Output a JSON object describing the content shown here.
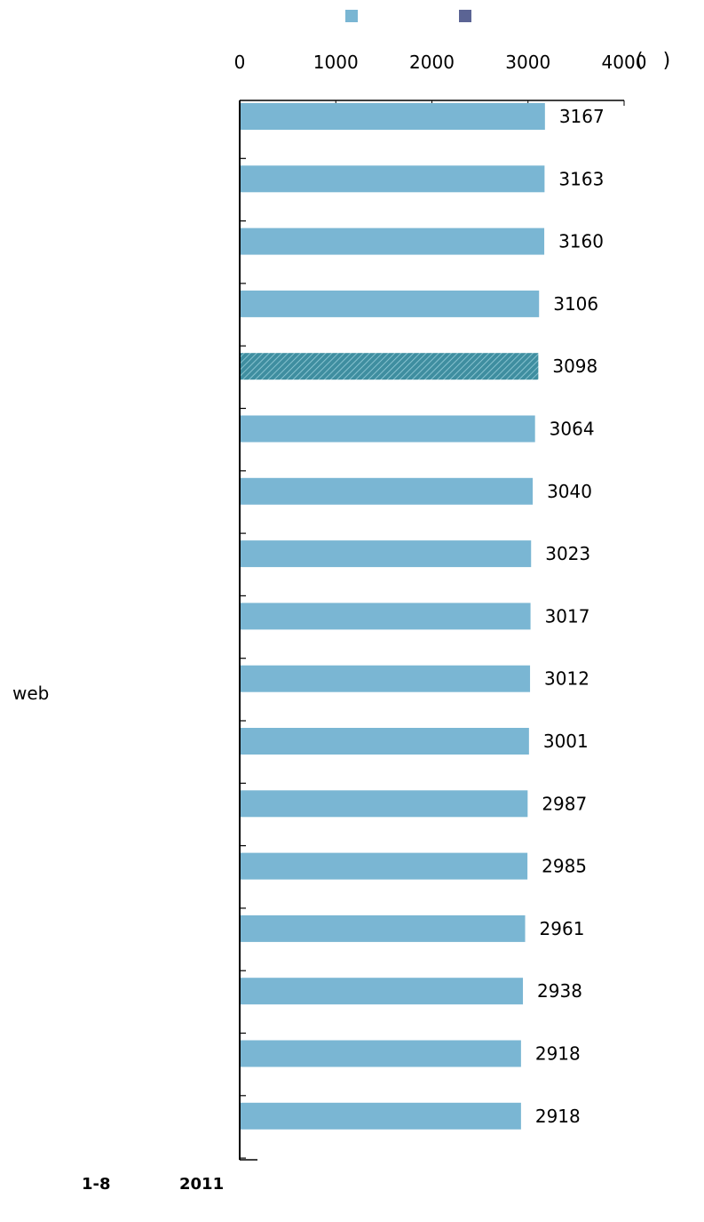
{
  "chart_data": {
    "type": "bar",
    "orientation": "horizontal",
    "values": [
      3167,
      3163,
      3160,
      3106,
      3098,
      3064,
      3040,
      3023,
      3017,
      3012,
      3001,
      2987,
      2985,
      2961,
      2938,
      2918,
      2918
    ],
    "highlight_index": 4,
    "xlim": [
      0,
      4000
    ],
    "x_ticks": [
      "0",
      "1000",
      "2000",
      "3000",
      "4000"
    ],
    "unit": "(　)",
    "legend": [
      {
        "color": "#7ab6d3",
        "pattern": "solid"
      },
      {
        "color": "#5b6494",
        "pattern": "solid"
      }
    ],
    "legend_position": "top-center",
    "bar_color": "#7ab6d3",
    "highlight_color": "#3f8ea0",
    "grid": false
  },
  "side_label": "web",
  "caption": {
    "figure": "1-8",
    "year": "2011"
  }
}
